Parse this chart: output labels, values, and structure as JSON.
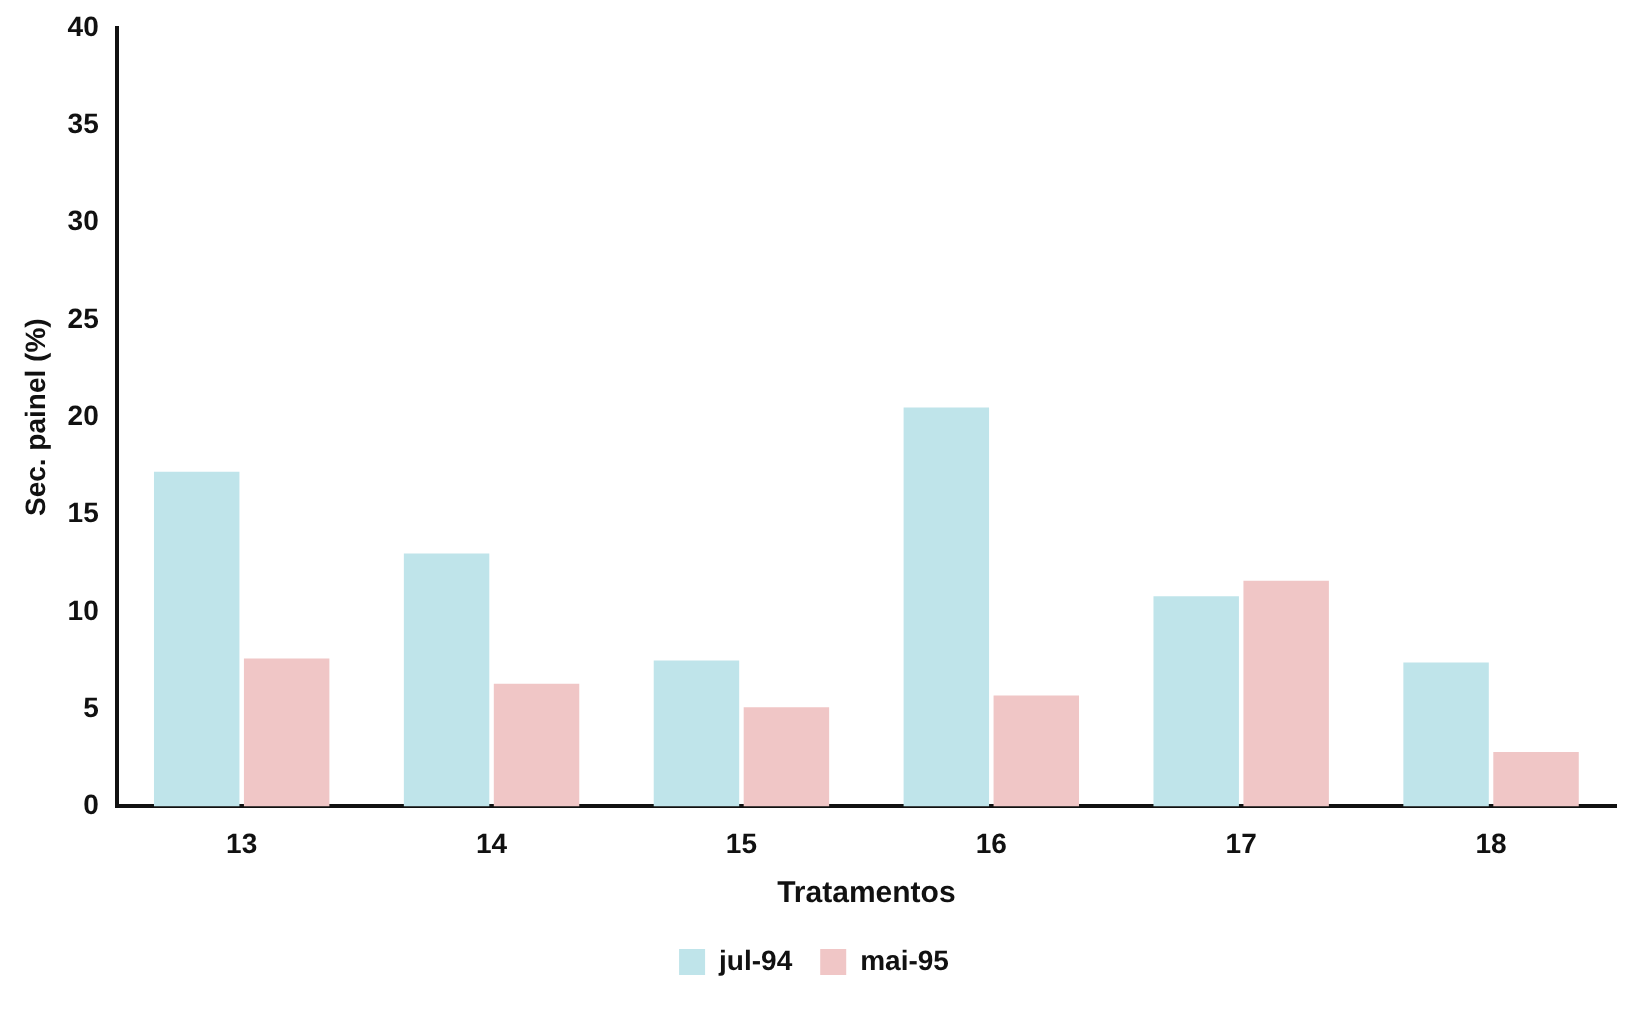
{
  "chart_data": {
    "type": "bar",
    "xlabel": "Tratamentos",
    "ylabel": "Sec. painel (%)",
    "categories": [
      "13",
      "14",
      "15",
      "16",
      "17",
      "18"
    ],
    "series": [
      {
        "name": "jul-94",
        "color": "#bfe4ea",
        "values": [
          17.2,
          13.0,
          7.5,
          20.5,
          10.8,
          7.4
        ]
      },
      {
        "name": "mai-95",
        "color": "#f0c6c6",
        "values": [
          7.6,
          6.3,
          5.1,
          5.7,
          11.6,
          2.8
        ]
      }
    ],
    "ylim": [
      0,
      40
    ],
    "yticks": [
      0,
      5,
      10,
      15,
      20,
      25,
      30,
      35,
      40
    ],
    "grid": false,
    "legend": "bottom"
  }
}
